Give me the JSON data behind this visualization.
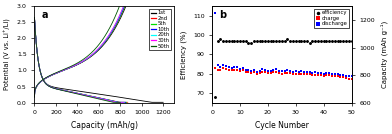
{
  "panel_a": {
    "title": "a",
    "xlabel": "Capacity (mAh/g)",
    "ylabel": "Potential (V vs. Li⁺/Li)",
    "xlim": [
      0,
      1300
    ],
    "ylim": [
      0.0,
      3.0
    ],
    "xticks": [
      0,
      200,
      400,
      600,
      800,
      1000,
      1200
    ],
    "yticks": [
      0.0,
      0.5,
      1.0,
      1.5,
      2.0,
      2.5,
      3.0
    ],
    "legend_labels": [
      "1st",
      "2nd",
      "5th",
      "10th",
      "20th",
      "30th",
      "50th"
    ],
    "legend_colors": [
      "black",
      "red",
      "#00dd00",
      "blue",
      "cyan",
      "magenta",
      "#005500"
    ],
    "cycles": [
      {
        "label": "1st",
        "color": "black",
        "d_cap": 1200,
        "c_cap": 850
      },
      {
        "label": "2nd",
        "color": "red",
        "d_cap": 870,
        "c_cap": 840
      },
      {
        "label": "5th",
        "color": "#00dd00",
        "d_cap": 860,
        "c_cap": 840
      },
      {
        "label": "10th",
        "color": "blue",
        "d_cap": 850,
        "c_cap": 835
      },
      {
        "label": "20th",
        "color": "cyan",
        "d_cap": 840,
        "c_cap": 830
      },
      {
        "label": "30th",
        "color": "magenta",
        "d_cap": 835,
        "c_cap": 828
      },
      {
        "label": "50th",
        "color": "#005500",
        "d_cap": 800,
        "c_cap": 790
      }
    ]
  },
  "panel_b": {
    "title": "b",
    "xlabel": "Cycle Number",
    "ylabel_left": "Efficiency (%)",
    "ylabel_right": "Capacity (mAh g⁻¹)",
    "xlim": [
      0,
      50
    ],
    "ylim_left": [
      65,
      115
    ],
    "ylim_right": [
      600,
      1300
    ],
    "yticks_left": [
      70,
      80,
      90,
      100,
      110
    ],
    "yticks_right": [
      600,
      800,
      1000,
      1200
    ],
    "xticks": [
      0,
      10,
      20,
      30,
      40,
      50
    ],
    "efficiency_cycle": [
      1,
      2,
      3,
      4,
      5,
      6,
      7,
      8,
      9,
      10,
      11,
      12,
      13,
      14,
      15,
      16,
      17,
      18,
      19,
      20,
      21,
      22,
      23,
      24,
      25,
      26,
      27,
      28,
      29,
      30,
      31,
      32,
      33,
      34,
      35,
      36,
      37,
      38,
      39,
      40,
      41,
      42,
      43,
      44,
      45,
      46,
      47,
      48,
      49,
      50
    ],
    "efficiency_val": [
      68,
      97,
      98,
      97,
      97,
      97,
      97,
      97,
      97,
      97,
      97,
      97,
      96,
      96,
      97,
      97,
      97,
      97,
      97,
      97,
      97,
      97,
      97,
      97,
      97,
      97,
      98,
      97,
      97,
      97,
      97,
      97,
      97,
      97,
      96,
      97,
      97,
      97,
      97,
      97,
      97,
      97,
      97,
      97,
      97,
      97,
      97,
      97,
      97,
      97
    ],
    "charge_cycle": [
      1,
      2,
      3,
      4,
      5,
      6,
      7,
      8,
      9,
      10,
      11,
      12,
      13,
      14,
      15,
      16,
      17,
      18,
      19,
      20,
      21,
      22,
      23,
      24,
      25,
      26,
      27,
      28,
      29,
      30,
      31,
      32,
      33,
      34,
      35,
      36,
      37,
      38,
      39,
      40,
      41,
      42,
      43,
      44,
      45,
      46,
      47,
      48,
      49,
      50
    ],
    "charge_cap": [
      850,
      840,
      840,
      850,
      845,
      840,
      835,
      840,
      838,
      830,
      835,
      820,
      825,
      815,
      820,
      810,
      815,
      825,
      820,
      818,
      815,
      820,
      825,
      815,
      810,
      812,
      818,
      812,
      808,
      810,
      808,
      810,
      805,
      808,
      805,
      800,
      802,
      798,
      800,
      795,
      800,
      798,
      792,
      795,
      790,
      788,
      785,
      780,
      775,
      775
    ],
    "discharge_cycle": [
      1,
      2,
      3,
      4,
      5,
      6,
      7,
      8,
      9,
      10,
      11,
      12,
      13,
      14,
      15,
      16,
      17,
      18,
      19,
      20,
      21,
      22,
      23,
      24,
      25,
      26,
      27,
      28,
      29,
      30,
      31,
      32,
      33,
      34,
      35,
      36,
      37,
      38,
      39,
      40,
      41,
      42,
      43,
      44,
      45,
      46,
      47,
      48,
      49,
      50
    ],
    "discharge_cap": [
      1250,
      870,
      860,
      870,
      865,
      858,
      852,
      858,
      855,
      845,
      850,
      836,
      840,
      830,
      836,
      825,
      830,
      842,
      835,
      833,
      830,
      836,
      842,
      830,
      826,
      828,
      836,
      828,
      824,
      826,
      824,
      828,
      822,
      825,
      820,
      816,
      820,
      815,
      816,
      811,
      816,
      814,
      808,
      811,
      806,
      804,
      800,
      796,
      790,
      790
    ],
    "legend_labels": [
      "efficiency",
      "charge",
      "discharge"
    ],
    "legend_colors": [
      "black",
      "red",
      "blue"
    ]
  }
}
